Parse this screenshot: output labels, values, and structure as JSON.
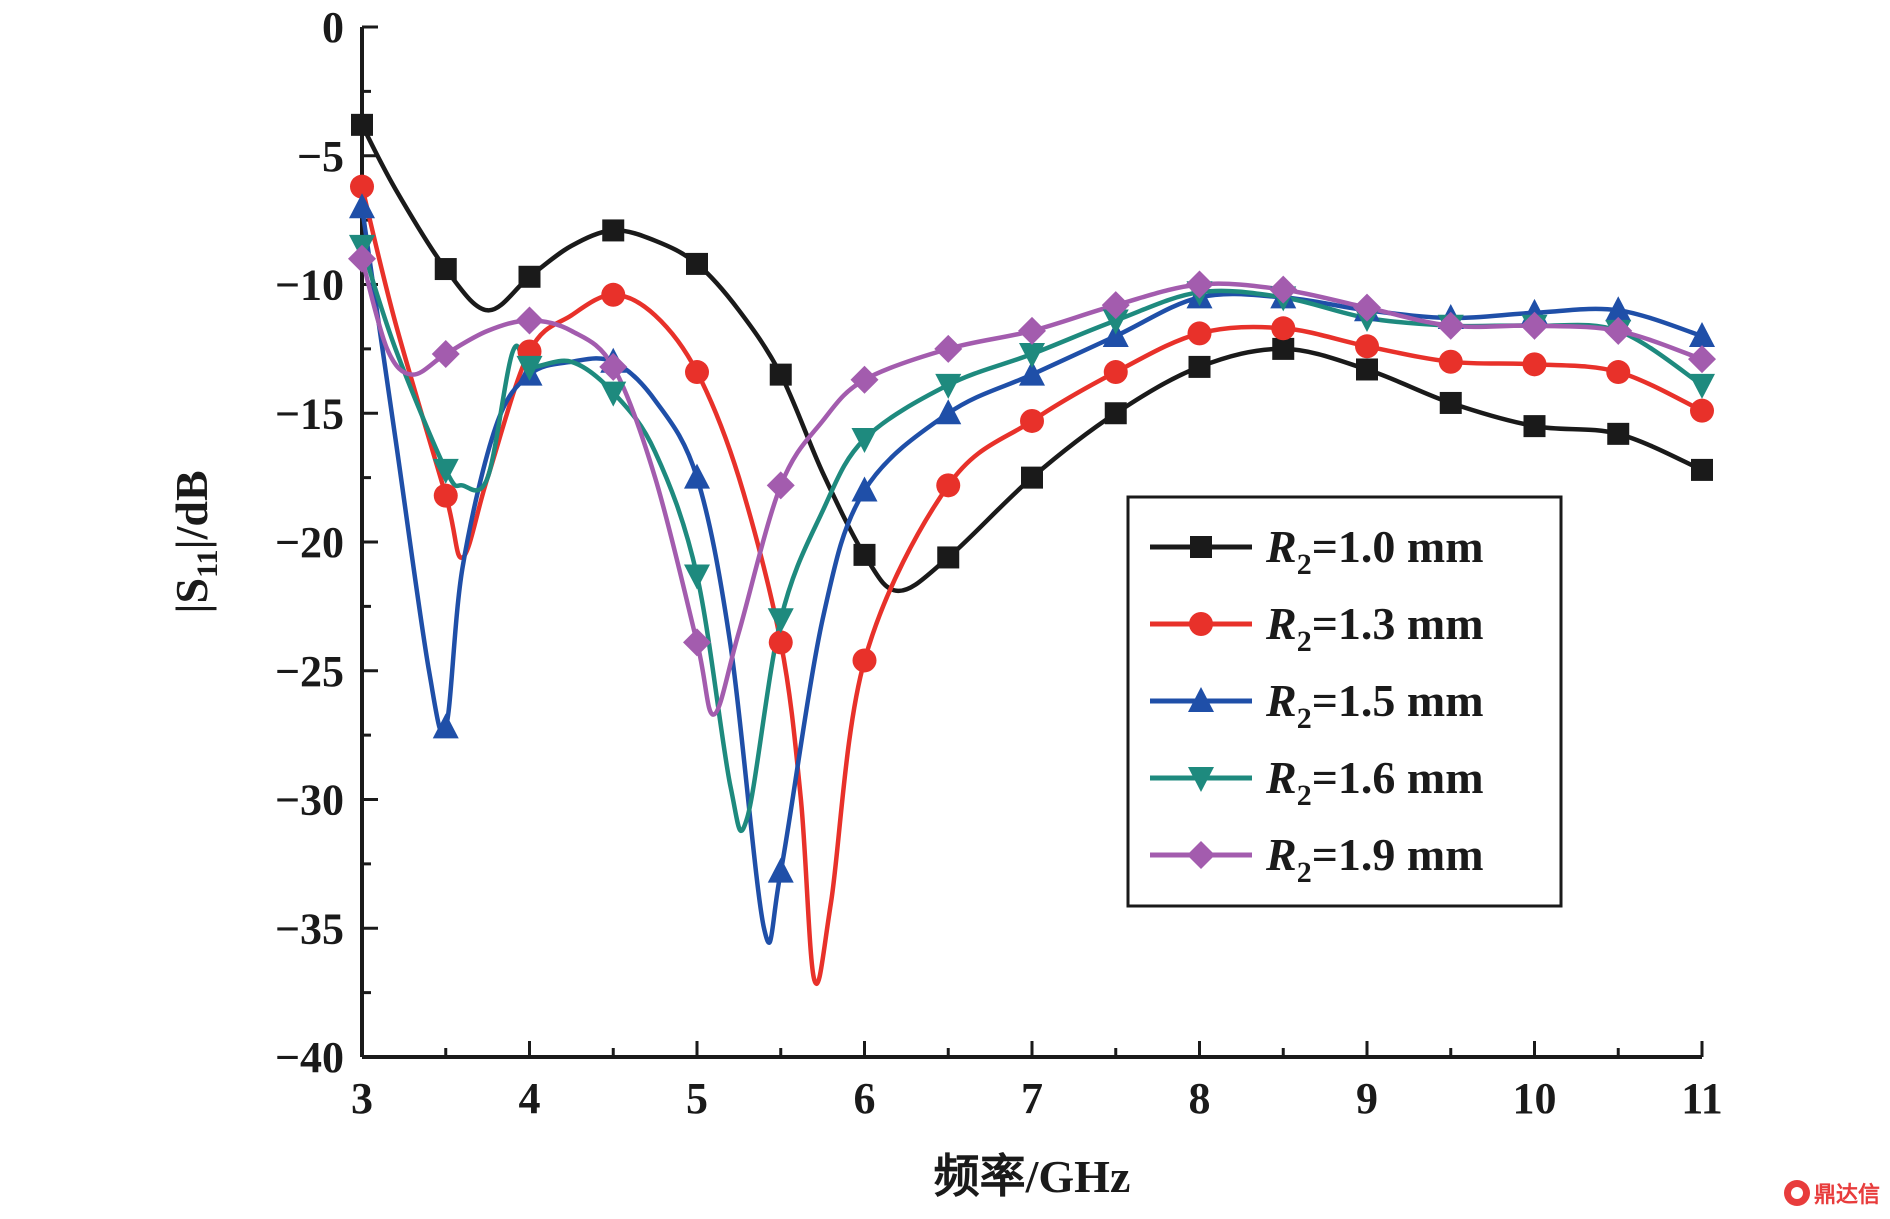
{
  "chart_data": {
    "type": "line",
    "xlabel": "频率/GHz",
    "ylabel_parts": {
      "pre": "|S",
      "sub": "11",
      "post": "|/dB"
    },
    "xlim": [
      3,
      11
    ],
    "ylim": [
      -40,
      0
    ],
    "xticks": [
      3,
      4,
      5,
      6,
      7,
      8,
      9,
      10,
      11
    ],
    "yticks": [
      0,
      -5,
      -10,
      -15,
      -20,
      -25,
      -30,
      -35,
      -40
    ],
    "ytick_labels": [
      "0",
      "−5",
      "−10",
      "−15",
      "−20",
      "−25",
      "−30",
      "−35",
      "−40"
    ],
    "grid": false,
    "legend_position": "right-center",
    "series": [
      {
        "name": "R2=1.0 mm",
        "legend": {
          "var": "R",
          "sub": "2",
          "rest": "=1.0  mm"
        },
        "color": "#1a1a1a",
        "marker": "square",
        "curve_x": [
          3.0,
          3.2,
          3.5,
          3.75,
          4.0,
          4.25,
          4.5,
          4.75,
          5.0,
          5.25,
          5.5,
          5.75,
          6.0,
          6.2,
          6.5,
          7.0,
          7.5,
          8.0,
          8.5,
          9.0,
          9.5,
          10.0,
          10.5,
          11.0
        ],
        "curve_y": [
          -3.8,
          -6.3,
          -9.4,
          -11.0,
          -9.7,
          -8.5,
          -7.9,
          -8.3,
          -9.2,
          -11.0,
          -13.5,
          -17.3,
          -20.5,
          -21.9,
          -20.6,
          -17.5,
          -15.0,
          -13.2,
          -12.5,
          -13.3,
          -14.6,
          -15.5,
          -15.8,
          -17.2
        ],
        "marker_x": [
          3.0,
          3.5,
          4.0,
          4.5,
          5.0,
          5.5,
          6.0,
          6.5,
          7.0,
          7.5,
          8.0,
          8.5,
          9.0,
          9.5,
          10.0,
          10.5,
          11.0
        ],
        "marker_y": [
          -3.8,
          -9.4,
          -9.7,
          -7.9,
          -9.2,
          -13.5,
          -20.5,
          -20.6,
          -17.5,
          -15.0,
          -13.2,
          -12.5,
          -13.3,
          -14.6,
          -15.5,
          -15.8,
          -17.2
        ]
      },
      {
        "name": "R2=1.3 mm",
        "legend": {
          "var": "R",
          "sub": "2",
          "rest": "=1.3  mm"
        },
        "color": "#e8312a",
        "marker": "circle",
        "curve_x": [
          3.0,
          3.2,
          3.5,
          3.6,
          3.75,
          4.0,
          4.25,
          4.5,
          4.75,
          5.0,
          5.25,
          5.5,
          5.62,
          5.7,
          5.8,
          6.0,
          6.5,
          7.0,
          7.5,
          8.0,
          8.5,
          9.0,
          9.5,
          10.0,
          10.5,
          11.0
        ],
        "curve_y": [
          -6.2,
          -11.5,
          -18.2,
          -20.6,
          -17.5,
          -12.6,
          -11.2,
          -10.4,
          -11.2,
          -13.4,
          -17.5,
          -23.9,
          -30.0,
          -37.0,
          -34.0,
          -24.6,
          -17.8,
          -15.3,
          -13.4,
          -11.9,
          -11.7,
          -12.4,
          -13.0,
          -13.1,
          -13.4,
          -14.9
        ],
        "marker_x": [
          3.0,
          3.5,
          4.0,
          4.5,
          5.0,
          5.5,
          6.0,
          6.5,
          7.0,
          7.5,
          8.0,
          8.5,
          9.0,
          9.5,
          10.0,
          10.5,
          11.0
        ],
        "marker_y": [
          -6.2,
          -18.2,
          -12.6,
          -10.4,
          -13.4,
          -23.9,
          -24.6,
          -17.8,
          -15.3,
          -13.4,
          -11.9,
          -11.7,
          -12.4,
          -13.0,
          -13.1,
          -13.4,
          -14.9
        ]
      },
      {
        "name": "R2=1.5 mm",
        "legend": {
          "var": "R",
          "sub": "2",
          "rest": "=1.5  mm"
        },
        "color": "#1f4fa8",
        "marker": "triangle-up",
        "curve_x": [
          3.0,
          3.2,
          3.4,
          3.5,
          3.6,
          3.8,
          4.0,
          4.25,
          4.5,
          4.75,
          5.0,
          5.2,
          5.4,
          5.5,
          5.75,
          6.0,
          6.5,
          7.0,
          7.5,
          8.0,
          8.5,
          9.0,
          9.5,
          10.0,
          10.5,
          11.0
        ],
        "curve_y": [
          -7.0,
          -16.0,
          -25.0,
          -27.2,
          -21.0,
          -15.5,
          -13.5,
          -13.0,
          -13.0,
          -14.5,
          -17.5,
          -24.0,
          -35.0,
          -32.8,
          -23.0,
          -18.0,
          -15.0,
          -13.5,
          -12.0,
          -10.5,
          -10.5,
          -11.0,
          -11.3,
          -11.1,
          -11.0,
          -12.0
        ],
        "marker_x": [
          3.0,
          3.5,
          4.0,
          4.5,
          5.0,
          5.5,
          6.0,
          6.5,
          7.0,
          7.5,
          8.0,
          8.5,
          9.0,
          9.5,
          10.0,
          10.5,
          11.0
        ],
        "marker_y": [
          -7.0,
          -27.2,
          -13.5,
          -13.0,
          -17.5,
          -32.8,
          -18.0,
          -15.0,
          -13.5,
          -12.0,
          -10.5,
          -10.5,
          -11.0,
          -11.3,
          -11.1,
          -11.0,
          -12.0
        ]
      },
      {
        "name": "R2=1.6 mm",
        "legend": {
          "var": "R",
          "sub": "2",
          "rest": "=1.6  mm"
        },
        "color": "#1e8a7e",
        "marker": "triangle-down",
        "curve_x": [
          3.0,
          3.2,
          3.5,
          3.6,
          3.75,
          3.9,
          4.0,
          4.25,
          4.5,
          4.75,
          5.0,
          5.2,
          5.3,
          5.5,
          5.75,
          6.0,
          6.5,
          7.0,
          7.5,
          8.0,
          8.5,
          9.0,
          9.5,
          10.0,
          10.5,
          11.0
        ],
        "curve_y": [
          -8.5,
          -12.5,
          -17.2,
          -17.8,
          -17.5,
          -12.6,
          -13.2,
          -13.0,
          -14.2,
          -16.5,
          -21.3,
          -29.5,
          -30.7,
          -23.0,
          -18.8,
          -16.0,
          -13.9,
          -12.7,
          -11.4,
          -10.3,
          -10.5,
          -11.3,
          -11.6,
          -11.6,
          -11.8,
          -13.9
        ],
        "marker_x": [
          3.0,
          3.5,
          4.0,
          4.5,
          5.0,
          5.5,
          6.0,
          6.5,
          7.0,
          7.5,
          8.0,
          8.5,
          9.0,
          9.5,
          10.0,
          10.5,
          11.0
        ],
        "marker_y": [
          -8.5,
          -17.2,
          -13.2,
          -14.2,
          -21.3,
          -23.0,
          -16.0,
          -13.9,
          -12.7,
          -11.4,
          -10.3,
          -10.5,
          -11.3,
          -11.6,
          -11.6,
          -11.8,
          -13.9
        ]
      },
      {
        "name": "R2=1.9 mm",
        "legend": {
          "var": "R",
          "sub": "2",
          "rest": "=1.9  mm"
        },
        "color": "#a35cae",
        "marker": "diamond",
        "curve_x": [
          3.0,
          3.15,
          3.3,
          3.5,
          3.75,
          4.0,
          4.25,
          4.5,
          4.75,
          5.0,
          5.1,
          5.25,
          5.5,
          5.75,
          6.0,
          6.5,
          7.0,
          7.5,
          8.0,
          8.5,
          9.0,
          9.5,
          10.0,
          10.5,
          11.0
        ],
        "curve_y": [
          -9.0,
          -12.5,
          -13.5,
          -12.7,
          -11.8,
          -11.4,
          -11.8,
          -13.2,
          -17.5,
          -23.9,
          -26.7,
          -23.5,
          -17.8,
          -15.3,
          -13.7,
          -12.5,
          -11.8,
          -10.8,
          -10.0,
          -10.2,
          -10.9,
          -11.6,
          -11.6,
          -11.8,
          -12.9
        ],
        "marker_x": [
          3.0,
          3.5,
          4.0,
          4.5,
          5.0,
          5.5,
          6.0,
          6.5,
          7.0,
          7.5,
          8.0,
          8.5,
          9.0,
          9.5,
          10.0,
          10.5,
          11.0
        ],
        "marker_y": [
          -9.0,
          -12.7,
          -11.4,
          -13.2,
          -23.9,
          -17.8,
          -13.7,
          -12.5,
          -11.8,
          -10.8,
          -10.0,
          -10.2,
          -10.9,
          -11.6,
          -11.6,
          -11.8,
          -12.9
        ]
      }
    ]
  },
  "watermark": {
    "text": "鼎达信",
    "icon": "dingdaxin-logo-icon",
    "color": "#e83c3c"
  }
}
